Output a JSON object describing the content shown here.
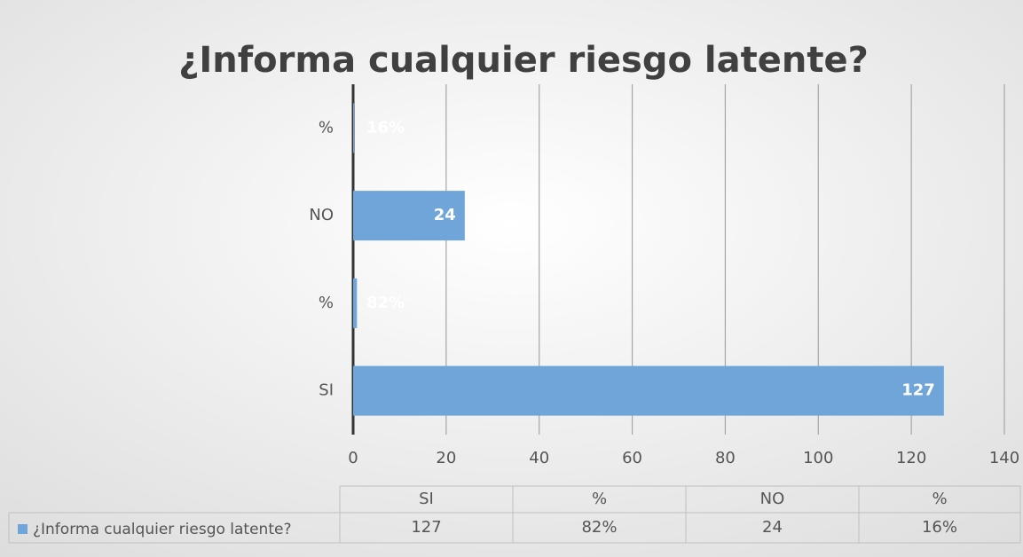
{
  "chart_data": {
    "type": "bar",
    "orientation": "horizontal",
    "title": "¿Informa cualquier riesgo latente?",
    "categories": [
      "SI",
      "%",
      "NO",
      "%"
    ],
    "series": [
      {
        "name": "¿Informa cualquier riesgo latente?",
        "color": "#6fa5d9",
        "values": [
          127,
          0.82,
          24,
          0.16
        ],
        "value_labels": [
          "127",
          "82%",
          "24",
          "16%"
        ]
      }
    ],
    "xlim": [
      0,
      140
    ],
    "xticks": [
      0,
      20,
      40,
      60,
      80,
      100,
      120,
      140
    ],
    "grid": true,
    "data_table": true
  }
}
